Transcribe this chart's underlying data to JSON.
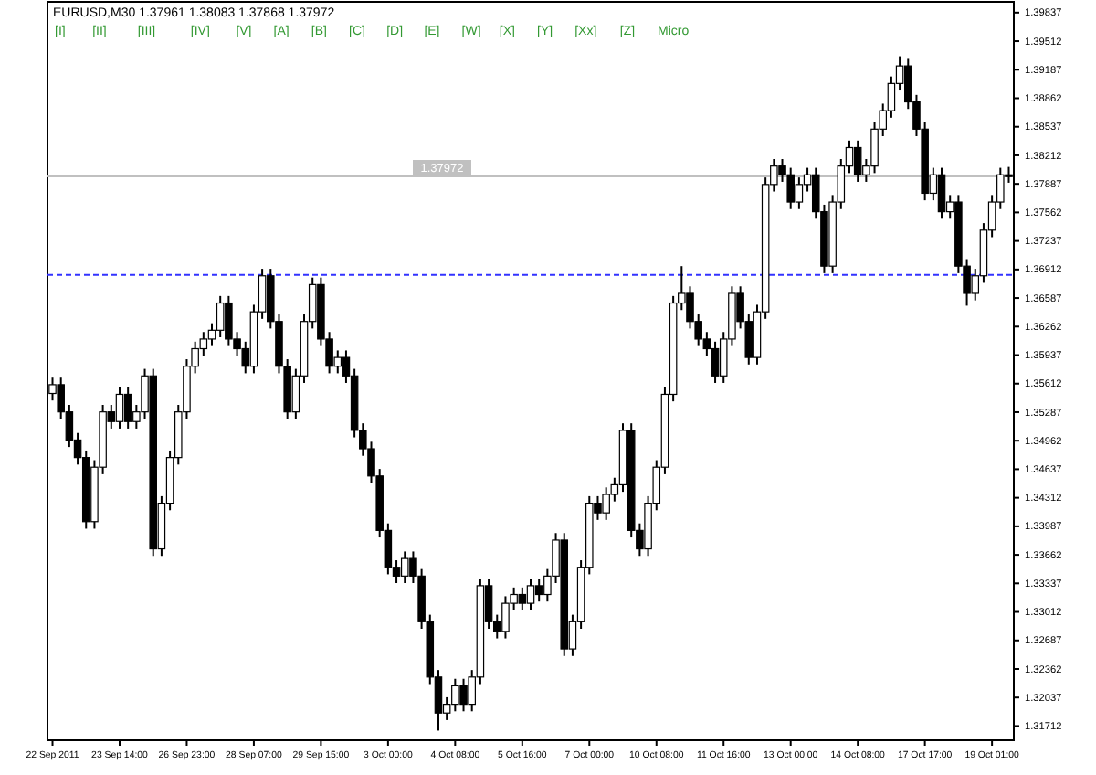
{
  "chart_data": {
    "type": "candlestick",
    "title": "EURUSD,M30  1.37961 1.38083 1.37868 1.37972",
    "annotations": [
      "[I]",
      "[II]",
      "[III]",
      "[IV]",
      "[V]",
      "[A]",
      "[B]",
      "[C]",
      "[D]",
      "[E]",
      "[W]",
      "[X]",
      "[Y]",
      "[Xx]",
      "[Z]",
      "Micro"
    ],
    "categories": [
      "22 Sep 2011",
      null,
      null,
      null,
      null,
      null,
      null,
      null,
      "23 Sep 14:00",
      null,
      null,
      null,
      null,
      null,
      null,
      null,
      "26 Sep 23:00",
      null,
      null,
      null,
      null,
      null,
      null,
      null,
      "28 Sep 07:00",
      null,
      null,
      null,
      null,
      null,
      null,
      null,
      "29 Sep 15:00",
      null,
      null,
      null,
      null,
      null,
      null,
      null,
      "3 Oct 00:00",
      null,
      null,
      null,
      null,
      null,
      null,
      null,
      "4 Oct 08:00",
      null,
      null,
      null,
      null,
      null,
      null,
      null,
      "5 Oct 16:00",
      null,
      null,
      null,
      null,
      null,
      null,
      null,
      "7 Oct 00:00",
      null,
      null,
      null,
      null,
      null,
      null,
      null,
      "10 Oct 08:00",
      null,
      null,
      null,
      null,
      null,
      null,
      null,
      "11 Oct 16:00",
      null,
      null,
      null,
      null,
      null,
      null,
      null,
      "13 Oct 00:00",
      null,
      null,
      null,
      null,
      null,
      null,
      null,
      "14 Oct 08:00",
      null,
      null,
      null,
      null,
      null,
      null,
      null,
      "17 Oct 17:00",
      null,
      null,
      null,
      null,
      null,
      null,
      null,
      "19 Oct 01:00",
      null,
      null
    ],
    "ohlc": [
      [
        1.355,
        1.3568,
        1.3542,
        1.356
      ],
      [
        1.356,
        1.3568,
        1.3521,
        1.3529
      ],
      [
        1.3529,
        1.3537,
        1.3489,
        1.3497
      ],
      [
        1.3497,
        1.3505,
        1.3469,
        1.3477
      ],
      [
        1.3477,
        1.3485,
        1.3396,
        1.3404
      ],
      [
        1.3404,
        1.3474,
        1.3396,
        1.3466
      ],
      [
        1.3466,
        1.3537,
        1.3458,
        1.3529
      ],
      [
        1.3529,
        1.3537,
        1.351,
        1.3518
      ],
      [
        1.3518,
        1.3557,
        1.351,
        1.3549
      ],
      [
        1.3549,
        1.3557,
        1.351,
        1.3518
      ],
      [
        1.3518,
        1.3537,
        1.351,
        1.3529
      ],
      [
        1.3529,
        1.3578,
        1.3521,
        1.357
      ],
      [
        1.357,
        1.3578,
        1.3365,
        1.3373
      ],
      [
        1.3373,
        1.3433,
        1.3365,
        1.3425
      ],
      [
        1.3425,
        1.3485,
        1.3417,
        1.3477
      ],
      [
        1.3477,
        1.3537,
        1.3469,
        1.3529
      ],
      [
        1.3529,
        1.3589,
        1.3521,
        1.3581
      ],
      [
        1.3581,
        1.3609,
        1.3573,
        1.3601
      ],
      [
        1.3601,
        1.362,
        1.3593,
        1.3612
      ],
      [
        1.3612,
        1.363,
        1.3604,
        1.3622
      ],
      [
        1.3622,
        1.3661,
        1.3614,
        1.3653
      ],
      [
        1.3653,
        1.3661,
        1.3604,
        1.3612
      ],
      [
        1.3612,
        1.362,
        1.3593,
        1.3601
      ],
      [
        1.3601,
        1.3609,
        1.3573,
        1.3581
      ],
      [
        1.3581,
        1.3651,
        1.3573,
        1.3643
      ],
      [
        1.3643,
        1.3692,
        1.3635,
        1.3684
      ],
      [
        1.3684,
        1.3692,
        1.3624,
        1.3632
      ],
      [
        1.3632,
        1.364,
        1.3573,
        1.3581
      ],
      [
        1.3581,
        1.3589,
        1.3521,
        1.3529
      ],
      [
        1.3529,
        1.3578,
        1.3521,
        1.357
      ],
      [
        1.357,
        1.364,
        1.3562,
        1.3632
      ],
      [
        1.3632,
        1.3682,
        1.3624,
        1.3674
      ],
      [
        1.3674,
        1.3682,
        1.3604,
        1.3612
      ],
      [
        1.3612,
        1.362,
        1.3573,
        1.3581
      ],
      [
        1.3581,
        1.3599,
        1.3573,
        1.3591
      ],
      [
        1.3591,
        1.3599,
        1.3562,
        1.357
      ],
      [
        1.357,
        1.3578,
        1.35,
        1.3508
      ],
      [
        1.3508,
        1.3516,
        1.3479,
        1.3487
      ],
      [
        1.3487,
        1.3495,
        1.3448,
        1.3456
      ],
      [
        1.3456,
        1.3464,
        1.3386,
        1.3394
      ],
      [
        1.3394,
        1.3402,
        1.3344,
        1.3352
      ],
      [
        1.3352,
        1.336,
        1.3334,
        1.3342
      ],
      [
        1.3342,
        1.337,
        1.3334,
        1.3362
      ],
      [
        1.3362,
        1.337,
        1.3334,
        1.3342
      ],
      [
        1.3342,
        1.335,
        1.3282,
        1.329
      ],
      [
        1.329,
        1.3298,
        1.3219,
        1.3227
      ],
      [
        1.3227,
        1.3235,
        1.3166,
        1.3186
      ],
      [
        1.3186,
        1.3204,
        1.3178,
        1.3196
      ],
      [
        1.3196,
        1.3225,
        1.3188,
        1.3217
      ],
      [
        1.3217,
        1.3225,
        1.3188,
        1.3196
      ],
      [
        1.3196,
        1.3235,
        1.3188,
        1.3227
      ],
      [
        1.3227,
        1.3339,
        1.3219,
        1.3331
      ],
      [
        1.3331,
        1.3339,
        1.3282,
        1.329
      ],
      [
        1.329,
        1.3298,
        1.3271,
        1.3279
      ],
      [
        1.3279,
        1.3319,
        1.3271,
        1.3311
      ],
      [
        1.3311,
        1.3329,
        1.3303,
        1.3321
      ],
      [
        1.3321,
        1.3329,
        1.3303,
        1.3311
      ],
      [
        1.3311,
        1.3339,
        1.3303,
        1.3331
      ],
      [
        1.3331,
        1.3339,
        1.3313,
        1.3321
      ],
      [
        1.3321,
        1.335,
        1.3313,
        1.3342
      ],
      [
        1.3342,
        1.3391,
        1.3334,
        1.3383
      ],
      [
        1.3383,
        1.3391,
        1.3251,
        1.3259
      ],
      [
        1.3259,
        1.3298,
        1.3251,
        1.329
      ],
      [
        1.329,
        1.336,
        1.3282,
        1.3352
      ],
      [
        1.3352,
        1.3433,
        1.3344,
        1.3425
      ],
      [
        1.3425,
        1.3433,
        1.3406,
        1.3414
      ],
      [
        1.3414,
        1.3443,
        1.3406,
        1.3435
      ],
      [
        1.3435,
        1.3454,
        1.3427,
        1.3446
      ],
      [
        1.3446,
        1.3516,
        1.3438,
        1.3508
      ],
      [
        1.3508,
        1.3516,
        1.3386,
        1.3394
      ],
      [
        1.3394,
        1.3402,
        1.3365,
        1.3373
      ],
      [
        1.3373,
        1.3433,
        1.3365,
        1.3425
      ],
      [
        1.3425,
        1.3474,
        1.3417,
        1.3466
      ],
      [
        1.3466,
        1.3557,
        1.3458,
        1.3549
      ],
      [
        1.3549,
        1.3661,
        1.3541,
        1.3653
      ],
      [
        1.3653,
        1.3695,
        1.3645,
        1.3664
      ],
      [
        1.3664,
        1.3672,
        1.3624,
        1.3632
      ],
      [
        1.3632,
        1.364,
        1.3604,
        1.3612
      ],
      [
        1.3612,
        1.362,
        1.3593,
        1.3601
      ],
      [
        1.3601,
        1.3609,
        1.3562,
        1.357
      ],
      [
        1.357,
        1.362,
        1.3562,
        1.3612
      ],
      [
        1.3612,
        1.3672,
        1.3604,
        1.3664
      ],
      [
        1.3664,
        1.3672,
        1.3624,
        1.3632
      ],
      [
        1.3632,
        1.364,
        1.3583,
        1.3591
      ],
      [
        1.3591,
        1.3651,
        1.3583,
        1.3643
      ],
      [
        1.3643,
        1.3796,
        1.3635,
        1.3788
      ],
      [
        1.3788,
        1.3817,
        1.378,
        1.3809
      ],
      [
        1.3809,
        1.3817,
        1.3791,
        1.3799
      ],
      [
        1.3799,
        1.3807,
        1.376,
        1.3768
      ],
      [
        1.3768,
        1.3796,
        1.376,
        1.3788
      ],
      [
        1.3788,
        1.3807,
        1.378,
        1.3799
      ],
      [
        1.3799,
        1.3807,
        1.3749,
        1.3757
      ],
      [
        1.3757,
        1.3765,
        1.3687,
        1.3695
      ],
      [
        1.3695,
        1.3776,
        1.3687,
        1.3768
      ],
      [
        1.3768,
        1.3817,
        1.376,
        1.3809
      ],
      [
        1.3809,
        1.3838,
        1.3801,
        1.383
      ],
      [
        1.383,
        1.3838,
        1.3791,
        1.3799
      ],
      [
        1.3799,
        1.3817,
        1.3791,
        1.3809
      ],
      [
        1.3809,
        1.3859,
        1.3801,
        1.3851
      ],
      [
        1.3851,
        1.388,
        1.3843,
        1.3872
      ],
      [
        1.3872,
        1.3911,
        1.3864,
        1.3903
      ],
      [
        1.3903,
        1.3934,
        1.3895,
        1.3923
      ],
      [
        1.3923,
        1.3931,
        1.3874,
        1.3882
      ],
      [
        1.3882,
        1.389,
        1.3843,
        1.3851
      ],
      [
        1.3851,
        1.3859,
        1.377,
        1.3778
      ],
      [
        1.3778,
        1.3807,
        1.377,
        1.3799
      ],
      [
        1.3799,
        1.3807,
        1.3749,
        1.3757
      ],
      [
        1.3757,
        1.3776,
        1.3749,
        1.3768
      ],
      [
        1.3768,
        1.3776,
        1.3687,
        1.3695
      ],
      [
        1.3695,
        1.3703,
        1.365,
        1.3664
      ],
      [
        1.3664,
        1.3692,
        1.3656,
        1.3684
      ],
      [
        1.3684,
        1.3744,
        1.3676,
        1.3736
      ],
      [
        1.3736,
        1.3776,
        1.3728,
        1.3768
      ],
      [
        1.3768,
        1.3807,
        1.376,
        1.3799
      ],
      [
        1.3799,
        1.3808,
        1.379,
        1.3797
      ]
    ],
    "color": "#000000",
    "ylim": [
      1.3155,
      1.3996
    ],
    "yticks": [
      {
        "value": 1.31712,
        "label": "1.31712"
      },
      {
        "value": 1.32037,
        "label": "1.32037"
      },
      {
        "value": 1.32362,
        "label": "1.32362"
      },
      {
        "value": 1.32687,
        "label": "1.32687"
      },
      {
        "value": 1.33012,
        "label": "1.33012"
      },
      {
        "value": 1.33337,
        "label": "1.33337"
      },
      {
        "value": 1.33662,
        "label": "1.33662"
      },
      {
        "value": 1.33987,
        "label": "1.33987"
      },
      {
        "value": 1.34312,
        "label": "1.34312"
      },
      {
        "value": 1.34637,
        "label": "1.34637"
      },
      {
        "value": 1.34962,
        "label": "1.34962"
      },
      {
        "value": 1.35287,
        "label": "1.35287"
      },
      {
        "value": 1.35612,
        "label": "1.35612"
      },
      {
        "value": 1.35937,
        "label": "1.35937"
      },
      {
        "value": 1.36262,
        "label": "1.36262"
      },
      {
        "value": 1.36587,
        "label": "1.36587"
      },
      {
        "value": 1.36912,
        "label": "1.36912"
      },
      {
        "value": 1.37237,
        "label": "1.37237"
      },
      {
        "value": 1.37562,
        "label": "1.37562"
      },
      {
        "value": 1.37887,
        "label": "1.37887"
      },
      {
        "value": 1.38212,
        "label": "1.38212"
      },
      {
        "value": 1.38537,
        "label": "1.38537"
      },
      {
        "value": 1.38862,
        "label": "1.38862"
      },
      {
        "value": 1.39187,
        "label": "1.39187"
      },
      {
        "value": 1.39512,
        "label": "1.39512"
      },
      {
        "value": 1.39837,
        "label": "1.39837"
      }
    ],
    "ref_lines": [
      {
        "axis": "y",
        "value": 1.3685,
        "color": "#3333ff",
        "line_style": "dashed"
      },
      {
        "axis": "y",
        "value": 1.37972,
        "label": "1.37972",
        "color": "#c0c0c0",
        "line_style": "solid"
      }
    ],
    "grid": false
  }
}
